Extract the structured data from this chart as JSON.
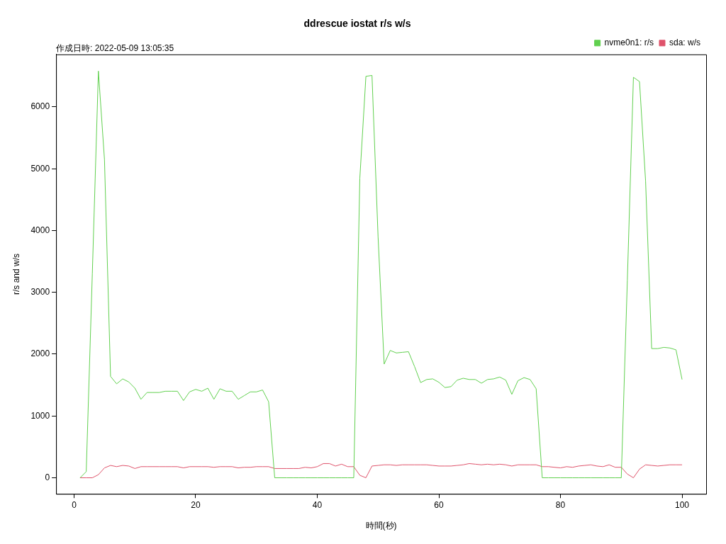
{
  "chart_data": {
    "type": "line",
    "title": "ddrescue iostat r/s w/s",
    "subtitle": "作成日時: 2022-05-09 13:05:35",
    "xlabel": "時間(秒)",
    "ylabel": "r/s and w/s",
    "x": [
      1,
      2,
      3,
      4,
      5,
      6,
      7,
      8,
      9,
      10,
      11,
      12,
      13,
      14,
      15,
      16,
      17,
      18,
      19,
      20,
      21,
      22,
      23,
      24,
      25,
      26,
      27,
      28,
      29,
      30,
      31,
      32,
      33,
      34,
      35,
      36,
      37,
      38,
      39,
      40,
      41,
      42,
      43,
      44,
      45,
      46,
      47,
      48,
      49,
      50,
      51,
      52,
      53,
      54,
      55,
      56,
      57,
      58,
      59,
      60,
      61,
      62,
      63,
      64,
      65,
      66,
      67,
      68,
      69,
      70,
      71,
      72,
      73,
      74,
      75,
      76,
      77,
      78,
      79,
      80,
      81,
      82,
      83,
      84,
      85,
      86,
      87,
      88,
      89,
      90,
      91,
      92,
      93,
      94,
      95,
      96,
      97,
      98,
      99,
      100
    ],
    "series": [
      {
        "name": "nvme0n1: r/s",
        "color": "#61d04f",
        "values": [
          0,
          100,
          3300,
          6580,
          5150,
          1640,
          1520,
          1600,
          1550,
          1450,
          1270,
          1380,
          1380,
          1380,
          1400,
          1400,
          1400,
          1250,
          1390,
          1430,
          1400,
          1450,
          1270,
          1440,
          1400,
          1400,
          1270,
          1330,
          1390,
          1390,
          1420,
          1230,
          0,
          0,
          0,
          0,
          0,
          0,
          0,
          0,
          0,
          0,
          0,
          0,
          0,
          0,
          4850,
          6495,
          6510,
          3900,
          1840,
          2060,
          2020,
          2030,
          2040,
          1800,
          1540,
          1590,
          1600,
          1545,
          1460,
          1475,
          1580,
          1610,
          1590,
          1590,
          1530,
          1590,
          1600,
          1630,
          1580,
          1350,
          1570,
          1620,
          1590,
          1440,
          0,
          0,
          0,
          0,
          0,
          0,
          0,
          0,
          0,
          0,
          0,
          0,
          0,
          0,
          3200,
          6480,
          6410,
          4800,
          2090,
          2090,
          2110,
          2100,
          2070,
          1590
        ]
      },
      {
        "name": "sda: w/s",
        "color": "#df536b",
        "values": [
          0,
          0,
          0,
          50,
          160,
          200,
          180,
          200,
          190,
          150,
          180,
          180,
          180,
          180,
          180,
          180,
          180,
          160,
          180,
          180,
          180,
          180,
          170,
          180,
          180,
          180,
          160,
          170,
          170,
          180,
          180,
          180,
          150,
          150,
          150,
          150,
          150,
          170,
          160,
          180,
          230,
          230,
          190,
          220,
          180,
          180,
          40,
          0,
          190,
          200,
          210,
          210,
          200,
          210,
          210,
          210,
          210,
          210,
          200,
          190,
          190,
          190,
          200,
          210,
          230,
          220,
          210,
          220,
          210,
          220,
          210,
          190,
          210,
          210,
          210,
          210,
          180,
          180,
          170,
          160,
          180,
          170,
          190,
          200,
          210,
          190,
          180,
          210,
          170,
          170,
          60,
          0,
          140,
          210,
          200,
          190,
          200,
          210,
          210,
          210
        ]
      }
    ],
    "xlim": [
      -2.96,
      103.96
    ],
    "xticks": [
      0,
      20,
      40,
      60,
      80,
      100
    ],
    "ylim": [
      -260,
      6850
    ],
    "yticks": [
      0,
      1000,
      2000,
      3000,
      4000,
      5000,
      6000
    ],
    "grid": false,
    "legend": "top right",
    "marker": "none",
    "line_style": "solid"
  }
}
